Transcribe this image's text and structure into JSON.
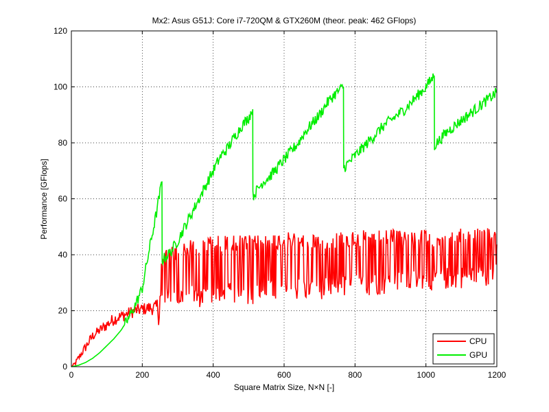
{
  "chart_data": {
    "type": "line",
    "title": "Mx2: Asus G51J: Core i7-720QM & GTX260M (theor. peak: 462 GFlops)",
    "xlabel": "Square Matrix Size, N×N   [-]",
    "ylabel": "Performance   [GFlops]",
    "xlim": [
      0,
      1200
    ],
    "ylim": [
      0,
      120
    ],
    "xticks": [
      0,
      200,
      400,
      600,
      800,
      1000,
      1200
    ],
    "yticks": [
      0,
      20,
      40,
      60,
      80,
      100,
      120
    ],
    "xtick_labels": [
      "0",
      "200",
      "400",
      "600",
      "800",
      "1000",
      "1200"
    ],
    "ytick_labels": [
      "0",
      "20",
      "40",
      "60",
      "80",
      "100",
      "120"
    ],
    "grid": true,
    "legend_position": "bottom-right",
    "series": [
      {
        "name": "CPU",
        "color": "#ff0000",
        "x": [
          0,
          10,
          20,
          30,
          40,
          50,
          60,
          80,
          100,
          120,
          140,
          160,
          180,
          200,
          220,
          240,
          250,
          260,
          280,
          300,
          350,
          400,
          450,
          500,
          550,
          600,
          650,
          700,
          750,
          800,
          850,
          900,
          950,
          1000,
          1050,
          1100,
          1150,
          1200
        ],
        "y": [
          0,
          1,
          3,
          5,
          7,
          9,
          11,
          13,
          15,
          17,
          18,
          19,
          20,
          20.5,
          21,
          21,
          21.5,
          22,
          22.5,
          23,
          23.5,
          24,
          24.5,
          25,
          25.5,
          26,
          26.5,
          27,
          27,
          28,
          28.5,
          29,
          29,
          30,
          30.5,
          31,
          31.5,
          32
        ],
        "upper_envelope": [
          0,
          2,
          4,
          6,
          9,
          11,
          13,
          15,
          18,
          20,
          21,
          22,
          23,
          24,
          25,
          26,
          40,
          42,
          43,
          44,
          46,
          47,
          47,
          47,
          47.5,
          48,
          48,
          48,
          48.5,
          48.5,
          49,
          49,
          49,
          49,
          49,
          49.5,
          49.5,
          49.5
        ],
        "lower_envelope": [
          0,
          0,
          1,
          3,
          5,
          7,
          9,
          11,
          13,
          15,
          16,
          17,
          18,
          19,
          19.5,
          20,
          20,
          20,
          20.5,
          21,
          21,
          21.5,
          22,
          22,
          23,
          23,
          24,
          24,
          24.5,
          25,
          25.5,
          26,
          26.5,
          27,
          27.5,
          28,
          28.5,
          29
        ]
      },
      {
        "name": "GPU",
        "color": "#00ee00",
        "x": [
          0,
          20,
          40,
          60,
          80,
          100,
          120,
          140,
          160,
          180,
          200,
          220,
          240,
          255,
          256,
          280,
          300,
          320,
          340,
          360,
          380,
          400,
          420,
          440,
          460,
          480,
          500,
          511,
          512,
          540,
          560,
          580,
          600,
          620,
          640,
          660,
          680,
          700,
          720,
          740,
          767,
          768,
          790,
          820,
          850,
          880,
          910,
          940,
          970,
          1000,
          1023,
          1024,
          1060,
          1100,
          1140,
          1200
        ],
        "y": [
          0,
          0.5,
          1.5,
          3,
          5,
          7.5,
          10,
          13,
          17,
          22,
          28,
          42,
          55,
          66,
          38,
          41,
          45,
          50,
          55,
          60,
          65,
          70,
          75,
          78,
          82,
          86,
          89,
          92,
          61,
          66,
          68,
          71,
          74,
          77,
          80,
          84,
          87,
          90,
          94,
          97,
          100,
          71,
          74,
          78,
          82,
          86,
          89,
          92,
          96,
          100,
          104,
          79,
          84,
          88,
          92,
          98
        ]
      }
    ]
  }
}
